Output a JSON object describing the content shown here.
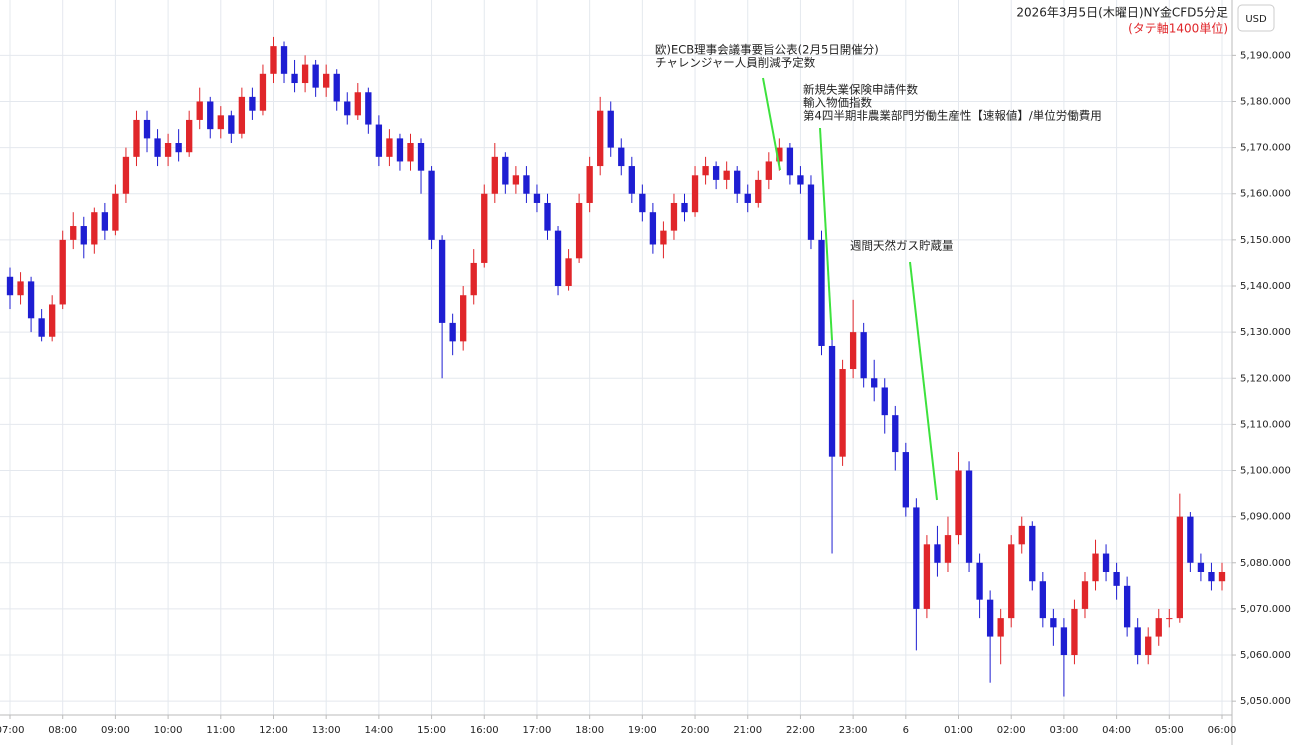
{
  "chart_data": {
    "type": "candlestick",
    "title": "2026年3月5日(木曜日)NY金CFD5分足",
    "subtitle": "(タテ軸1400単位)",
    "y_unit": "USD",
    "up_color": "#e0262a",
    "down_color": "#1e1ed2",
    "grid": true,
    "annotations": [
      {
        "lines": [
          "欧)ECB理事会議事要旨公表(2月5日開催分)",
          "チャレンジャー人員削減予定数"
        ]
      },
      {
        "lines": [
          "新規失業保険申請件数",
          "輸入物価指数",
          "第4四半期非農業部門労働生産性【速報値】/単位労働費用"
        ]
      },
      {
        "lines": [
          "週間天然ガス貯蔵量"
        ]
      }
    ],
    "xlim": [
      -0.19,
      23.19
    ],
    "xticks": [
      {
        "value": 0,
        "label": "07:00"
      },
      {
        "value": 1,
        "label": "08:00"
      },
      {
        "value": 2,
        "label": "09:00"
      },
      {
        "value": 3,
        "label": "10:00"
      },
      {
        "value": 4,
        "label": "11:00"
      },
      {
        "value": 5,
        "label": "12:00"
      },
      {
        "value": 6,
        "label": "13:00"
      },
      {
        "value": 7,
        "label": "14:00"
      },
      {
        "value": 8,
        "label": "15:00"
      },
      {
        "value": 9,
        "label": "16:00"
      },
      {
        "value": 10,
        "label": "17:00"
      },
      {
        "value": 11,
        "label": "18:00"
      },
      {
        "value": 12,
        "label": "19:00"
      },
      {
        "value": 13,
        "label": "20:00"
      },
      {
        "value": 14,
        "label": "21:00"
      },
      {
        "value": 15,
        "label": "22:00"
      },
      {
        "value": 16,
        "label": "23:00"
      },
      {
        "value": 17,
        "label": "6"
      },
      {
        "value": 18,
        "label": "01:00"
      },
      {
        "value": 19,
        "label": "02:00"
      },
      {
        "value": 20,
        "label": "03:00"
      },
      {
        "value": 21,
        "label": "04:00"
      },
      {
        "value": 22,
        "label": "05:00"
      },
      {
        "value": 23,
        "label": "06:00"
      }
    ],
    "ylim": [
      5047,
      5202
    ],
    "yticks": [
      {
        "value": 5050,
        "label": "5,050.000"
      },
      {
        "value": 5060,
        "label": "5,060.000"
      },
      {
        "value": 5070,
        "label": "5,070.000"
      },
      {
        "value": 5080,
        "label": "5,080.000"
      },
      {
        "value": 5090,
        "label": "5,090.000"
      },
      {
        "value": 5100,
        "label": "5,100.000"
      },
      {
        "value": 5110,
        "label": "5,110.000"
      },
      {
        "value": 5120,
        "label": "5,120.000"
      },
      {
        "value": 5130,
        "label": "5,130.000"
      },
      {
        "value": 5140,
        "label": "5,140.000"
      },
      {
        "value": 5150,
        "label": "5,150.000"
      },
      {
        "value": 5160,
        "label": "5,160.000"
      },
      {
        "value": 5170,
        "label": "5,170.000"
      },
      {
        "value": 5180,
        "label": "5,180.000"
      },
      {
        "value": 5190,
        "label": "5,190.000"
      }
    ],
    "x": [
      0,
      0.2,
      0.4,
      0.6,
      0.8,
      1,
      1.2,
      1.4,
      1.6,
      1.8,
      2,
      2.2,
      2.4,
      2.6,
      2.8,
      3,
      3.2,
      3.4,
      3.6,
      3.8,
      4,
      4.2,
      4.4,
      4.6,
      4.8,
      5,
      5.2,
      5.4,
      5.6,
      5.8,
      6,
      6.2,
      6.4,
      6.6,
      6.8,
      7,
      7.2,
      7.4,
      7.6,
      7.8,
      8,
      8.2,
      8.4,
      8.6,
      8.8,
      9,
      9.2,
      9.4,
      9.6,
      9.8,
      10,
      10.2,
      10.4,
      10.6,
      10.8,
      11,
      11.2,
      11.4,
      11.6,
      11.8,
      12,
      12.2,
      12.4,
      12.6,
      12.8,
      13,
      13.2,
      13.4,
      13.6,
      13.8,
      14,
      14.2,
      14.4,
      14.6,
      14.8,
      15,
      15.2,
      15.4,
      15.6,
      15.8,
      16,
      16.2,
      16.4,
      16.6,
      16.8,
      17,
      17.2,
      17.4,
      17.6,
      17.8,
      18,
      18.2,
      18.4,
      18.6,
      18.8,
      19,
      19.2,
      19.4,
      19.6,
      19.8,
      20,
      20.2,
      20.4,
      20.6,
      20.8,
      21,
      21.2,
      21.4,
      21.6,
      21.8,
      22,
      22.2,
      22.4,
      22.6,
      22.8,
      23
    ],
    "open": [
      5142,
      5138,
      5141,
      5133,
      5129,
      5136,
      5150,
      5153,
      5149,
      5156,
      5152,
      5160,
      5168,
      5176,
      5172,
      5168,
      5171,
      5169,
      5176,
      5180,
      5174,
      5177,
      5173,
      5181,
      5178,
      5186,
      5192,
      5186,
      5184,
      5188,
      5183,
      5186,
      5180,
      5177,
      5182,
      5175,
      5168,
      5172,
      5167,
      5171,
      5165,
      5150,
      5132,
      5128,
      5138,
      5145,
      5160,
      5168,
      5162,
      5164,
      5160,
      5158,
      5152,
      5140,
      5146,
      5158,
      5166,
      5178,
      5170,
      5166,
      5160,
      5156,
      5149,
      5152,
      5158,
      5156,
      5164,
      5166,
      5163,
      5165,
      5160,
      5158,
      5163,
      5167,
      5170,
      5164,
      5162,
      5150,
      5127,
      5103,
      5122,
      5130,
      5120,
      5118,
      5112,
      5104,
      5092,
      5070,
      5084,
      5080,
      5086,
      5100,
      5080,
      5072,
      5064,
      5068,
      5084,
      5088,
      5076,
      5068,
      5066,
      5060,
      5070,
      5076,
      5082,
      5078,
      5075,
      5066,
      5060,
      5064,
      5068,
      5068,
      5090,
      5080,
      5078,
      5076
    ],
    "high": [
      5144,
      5143,
      5142,
      5135,
      5138,
      5152,
      5156,
      5155,
      5157,
      5158,
      5162,
      5170,
      5178,
      5178,
      5174,
      5173,
      5174,
      5178,
      5183,
      5181,
      5179,
      5178,
      5183,
      5183,
      5188,
      5194,
      5193,
      5189,
      5190,
      5189,
      5188,
      5187,
      5182,
      5184,
      5183,
      5177,
      5174,
      5173,
      5173,
      5172,
      5166,
      5151,
      5134,
      5140,
      5148,
      5162,
      5171,
      5169,
      5166,
      5166,
      5162,
      5160,
      5153,
      5148,
      5160,
      5168,
      5181,
      5180,
      5172,
      5168,
      5162,
      5158,
      5154,
      5160,
      5160,
      5166,
      5168,
      5167,
      5167,
      5166,
      5162,
      5165,
      5169,
      5172,
      5171,
      5166,
      5164,
      5152,
      5129,
      5124,
      5137,
      5132,
      5124,
      5120,
      5114,
      5106,
      5094,
      5086,
      5088,
      5090,
      5104,
      5102,
      5082,
      5074,
      5070,
      5086,
      5090,
      5089,
      5078,
      5070,
      5068,
      5072,
      5078,
      5085,
      5084,
      5080,
      5077,
      5068,
      5066,
      5070,
      5070,
      5095,
      5091,
      5082,
      5080,
      5080
    ],
    "low": [
      5135,
      5136,
      5130,
      5128,
      5128,
      5135,
      5148,
      5146,
      5147,
      5150,
      5151,
      5158,
      5166,
      5169,
      5166,
      5166,
      5167,
      5168,
      5174,
      5172,
      5172,
      5171,
      5172,
      5176,
      5177,
      5184,
      5184,
      5182,
      5182,
      5181,
      5181,
      5178,
      5175,
      5176,
      5173,
      5166,
      5166,
      5165,
      5165,
      5160,
      5148,
      5120,
      5125,
      5126,
      5136,
      5144,
      5158,
      5160,
      5160,
      5158,
      5156,
      5150,
      5138,
      5139,
      5145,
      5156,
      5164,
      5168,
      5164,
      5158,
      5154,
      5147,
      5146,
      5150,
      5154,
      5155,
      5162,
      5161,
      5161,
      5158,
      5156,
      5157,
      5161,
      5165,
      5162,
      5160,
      5148,
      5125,
      5082,
      5101,
      5120,
      5118,
      5115,
      5108,
      5100,
      5090,
      5061,
      5068,
      5077,
      5078,
      5084,
      5078,
      5068,
      5054,
      5058,
      5066,
      5082,
      5074,
      5066,
      5062,
      5051,
      5058,
      5068,
      5074,
      5076,
      5072,
      5064,
      5058,
      5058,
      5062,
      5066,
      5067,
      5078,
      5076,
      5074,
      5074
    ],
    "close": [
      5138,
      5141,
      5133,
      5129,
      5136,
      5150,
      5153,
      5149,
      5156,
      5152,
      5160,
      5168,
      5176,
      5172,
      5168,
      5171,
      5169,
      5176,
      5180,
      5174,
      5177,
      5173,
      5181,
      5178,
      5186,
      5192,
      5186,
      5184,
      5188,
      5183,
      5186,
      5180,
      5177,
      5182,
      5175,
      5168,
      5172,
      5167,
      5171,
      5165,
      5150,
      5132,
      5128,
      5138,
      5145,
      5160,
      5168,
      5162,
      5164,
      5160,
      5158,
      5152,
      5140,
      5146,
      5158,
      5166,
      5178,
      5170,
      5166,
      5160,
      5156,
      5149,
      5152,
      5158,
      5156,
      5164,
      5166,
      5163,
      5165,
      5160,
      5158,
      5163,
      5167,
      5170,
      5164,
      5162,
      5150,
      5127,
      5103,
      5122,
      5130,
      5120,
      5118,
      5112,
      5104,
      5092,
      5070,
      5084,
      5080,
      5086,
      5100,
      5080,
      5072,
      5064,
      5068,
      5084,
      5088,
      5076,
      5068,
      5066,
      5060,
      5070,
      5076,
      5082,
      5078,
      5075,
      5066,
      5060,
      5064,
      5068,
      5068,
      5090,
      5080,
      5078,
      5076,
      5078
    ]
  }
}
